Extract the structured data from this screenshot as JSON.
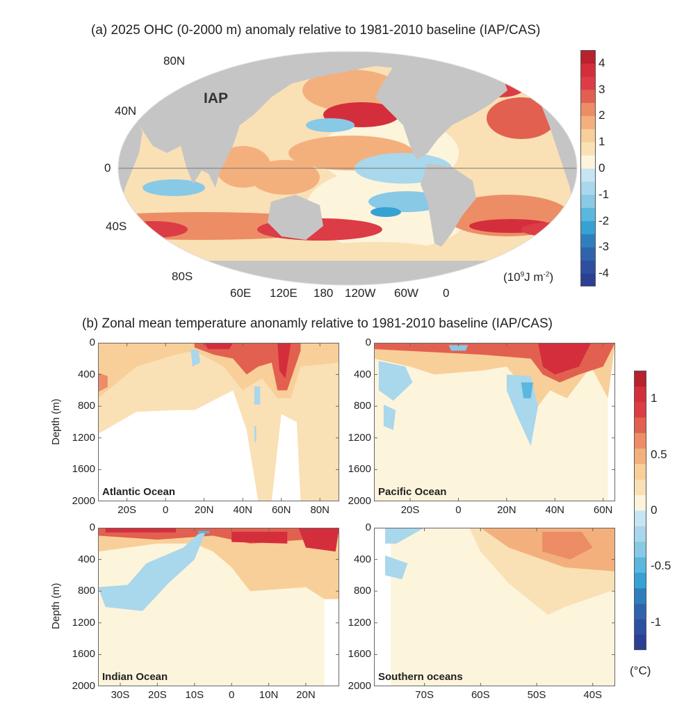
{
  "chart_data": [
    {
      "type": "heatmap",
      "panel": "a",
      "title": "(a) 2025 OHC (0-2000 m) anomaly relative to 1981-2010 baseline (IAP/CAS)",
      "annotation": "IAP",
      "projection": "Robinson world map",
      "lat_ticks": [
        "80N",
        "40N",
        "0",
        "40S",
        "80S"
      ],
      "lon_ticks": [
        "60E",
        "120E",
        "180",
        "120W",
        "60W",
        "0"
      ],
      "colorbar": {
        "ticks": [
          "4",
          "3",
          "2",
          "1",
          "0",
          "-1",
          "-2",
          "-3",
          "-4"
        ],
        "range": [
          -4.5,
          4.5
        ],
        "unit_label": "(10",
        "unit_sup": "9",
        "unit_mid": "J m",
        "unit_sup2": "-2",
        "unit_end": ")"
      },
      "features": [
        {
          "region": "North Pacific (Kuroshio extension)",
          "value": 3.5
        },
        {
          "region": "Northwest Pacific near Japan",
          "value": -1.5
        },
        {
          "region": "Central equatorial Pacific",
          "value": -0.5
        },
        {
          "region": "Southeast Pacific",
          "value": -1.5
        },
        {
          "region": "Southern Indian Ocean",
          "value": -1.0
        },
        {
          "region": "North Atlantic / subpolar",
          "value": 3.0
        },
        {
          "region": "Mediterranean",
          "value": 3.5
        },
        {
          "region": "South Atlantic ~40S",
          "value": 3.0
        },
        {
          "region": "Southern Ocean south of Australia",
          "value": 3.0
        },
        {
          "region": "Southern Ocean ~40S Indian sector",
          "value": 3.0
        },
        {
          "region": "Western tropical Pacific",
          "value": 2.0
        }
      ]
    },
    {
      "type": "heatmap",
      "panel": "b",
      "title": "(b) Zonal mean temperature anonamly relative to 1981-2010 baseline (IAP/CAS)",
      "ylabel": "Depth (m)",
      "ylim": [
        0,
        2000
      ],
      "y_ticks": [
        "0",
        "400",
        "800",
        "1200",
        "1600",
        "2000"
      ],
      "colorbar": {
        "ticks": [
          "1",
          "0.5",
          "0",
          "-0.5",
          "-1"
        ],
        "range": [
          -1.25,
          1.25
        ],
        "unit": "(°C)"
      },
      "subplots": [
        {
          "name": "Atlantic Ocean",
          "x_ticks": [
            "20S",
            "0",
            "20N",
            "40N",
            "60N",
            "80N"
          ],
          "xlim": [
            -35,
            90
          ],
          "features": [
            {
              "lat": 25,
              "depth": 100,
              "value": 1.0
            },
            {
              "lat": 60,
              "depth": 300,
              "value": 1.0
            },
            {
              "lat": -33,
              "depth": 500,
              "value": 0.6
            },
            {
              "lat": 15,
              "depth": 250,
              "value": -0.15
            },
            {
              "lat": 47,
              "depth": 650,
              "value": -0.15
            }
          ]
        },
        {
          "name": "Pacific Ocean",
          "x_ticks": [
            "20S",
            "0",
            "20N",
            "40N",
            "60N"
          ],
          "xlim": [
            -35,
            65
          ],
          "features": [
            {
              "lat": 40,
              "depth": 150,
              "value": 1.1
            },
            {
              "lat": 28,
              "depth": 600,
              "value": -0.4
            },
            {
              "lat": -25,
              "depth": 450,
              "value": -0.25
            },
            {
              "lat": -27,
              "depth": 950,
              "value": -0.15
            },
            {
              "lat": 0,
              "depth": 50,
              "value": -0.3
            }
          ]
        },
        {
          "name": "Indian Ocean",
          "x_ticks": [
            "30S",
            "20S",
            "10S",
            "0",
            "10N",
            "20N"
          ],
          "xlim": [
            -36,
            29
          ],
          "features": [
            {
              "lat": 5,
              "depth": 100,
              "value": 1.0
            },
            {
              "lat": 25,
              "depth": 200,
              "value": 1.0
            },
            {
              "lat": -28,
              "depth": 50,
              "value": 0.9
            },
            {
              "lat": -20,
              "depth": 700,
              "value": -0.15
            },
            {
              "lat": -7,
              "depth": 50,
              "value": -0.5
            }
          ]
        },
        {
          "name": "Southern oceans",
          "x_ticks": [
            "70S",
            "60S",
            "50S",
            "40S"
          ],
          "xlim": [
            -79,
            -36
          ],
          "features": [
            {
              "lat": -45,
              "depth": 200,
              "value": 0.5
            },
            {
              "lat": -50,
              "depth": 600,
              "value": 0.2
            },
            {
              "lat": -76,
              "depth": 400,
              "value": -0.15
            }
          ]
        }
      ]
    }
  ]
}
